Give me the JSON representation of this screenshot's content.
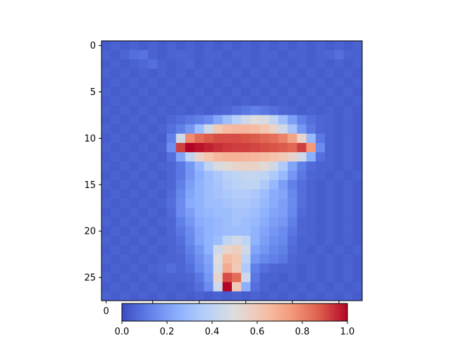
{
  "chart_data": {
    "type": "heatmap",
    "colormap": "coolwarm",
    "grid": false,
    "rows": 28,
    "cols": 28,
    "y_ticks": [
      "0",
      "5",
      "10",
      "15",
      "20",
      "25"
    ],
    "x_ticks_visible": [
      "0"
    ],
    "colorbar": {
      "orientation": "horizontal",
      "placement": "bottom",
      "range": [
        0.0,
        1.0
      ],
      "tick_labels": [
        "0.0",
        "0.2",
        "0.4",
        "0.6",
        "0.8",
        "1.0"
      ]
    },
    "values": [
      [
        0.04,
        0.05,
        0.04,
        0.05,
        0.04,
        0.05,
        0.04,
        0.05,
        0.04,
        0.05,
        0.04,
        0.05,
        0.04,
        0.05,
        0.04,
        0.05,
        0.04,
        0.05,
        0.04,
        0.05,
        0.04,
        0.05,
        0.04,
        0.05,
        0.04,
        0.05,
        0.04,
        0.05
      ],
      [
        0.05,
        0.04,
        0.06,
        0.08,
        0.09,
        0.05,
        0.04,
        0.05,
        0.06,
        0.05,
        0.04,
        0.05,
        0.05,
        0.04,
        0.05,
        0.05,
        0.04,
        0.05,
        0.05,
        0.04,
        0.05,
        0.05,
        0.04,
        0.05,
        0.06,
        0.08,
        0.05,
        0.05
      ],
      [
        0.04,
        0.05,
        0.04,
        0.05,
        0.06,
        0.08,
        0.05,
        0.04,
        0.05,
        0.06,
        0.04,
        0.05,
        0.04,
        0.05,
        0.04,
        0.05,
        0.04,
        0.05,
        0.04,
        0.05,
        0.04,
        0.05,
        0.04,
        0.05,
        0.04,
        0.05,
        0.04,
        0.05
      ],
      [
        0.05,
        0.04,
        0.05,
        0.04,
        0.05,
        0.04,
        0.05,
        0.04,
        0.05,
        0.04,
        0.05,
        0.04,
        0.05,
        0.04,
        0.05,
        0.04,
        0.05,
        0.04,
        0.05,
        0.04,
        0.05,
        0.04,
        0.05,
        0.04,
        0.05,
        0.04,
        0.05,
        0.04
      ],
      [
        0.04,
        0.05,
        0.04,
        0.05,
        0.04,
        0.05,
        0.04,
        0.05,
        0.04,
        0.05,
        0.04,
        0.05,
        0.04,
        0.05,
        0.04,
        0.05,
        0.04,
        0.05,
        0.04,
        0.05,
        0.04,
        0.05,
        0.04,
        0.05,
        0.04,
        0.05,
        0.04,
        0.05
      ],
      [
        0.05,
        0.04,
        0.05,
        0.04,
        0.05,
        0.04,
        0.05,
        0.04,
        0.05,
        0.04,
        0.05,
        0.04,
        0.05,
        0.04,
        0.05,
        0.04,
        0.05,
        0.04,
        0.05,
        0.04,
        0.05,
        0.04,
        0.05,
        0.04,
        0.05,
        0.04,
        0.05,
        0.04
      ],
      [
        0.04,
        0.05,
        0.04,
        0.05,
        0.04,
        0.05,
        0.04,
        0.05,
        0.04,
        0.05,
        0.04,
        0.05,
        0.04,
        0.05,
        0.04,
        0.05,
        0.04,
        0.05,
        0.04,
        0.05,
        0.04,
        0.05,
        0.04,
        0.05,
        0.04,
        0.05,
        0.04,
        0.05
      ],
      [
        0.05,
        0.04,
        0.05,
        0.04,
        0.05,
        0.04,
        0.05,
        0.04,
        0.05,
        0.04,
        0.05,
        0.04,
        0.05,
        0.06,
        0.08,
        0.1,
        0.12,
        0.1,
        0.08,
        0.06,
        0.05,
        0.04,
        0.05,
        0.04,
        0.05,
        0.04,
        0.05,
        0.04
      ],
      [
        0.04,
        0.05,
        0.04,
        0.05,
        0.04,
        0.05,
        0.04,
        0.06,
        0.08,
        0.1,
        0.12,
        0.15,
        0.22,
        0.3,
        0.38,
        0.45,
        0.5,
        0.48,
        0.4,
        0.3,
        0.2,
        0.12,
        0.08,
        0.06,
        0.05,
        0.04,
        0.05,
        0.04
      ],
      [
        0.05,
        0.04,
        0.05,
        0.04,
        0.05,
        0.04,
        0.05,
        0.08,
        0.12,
        0.18,
        0.3,
        0.45,
        0.6,
        0.65,
        0.66,
        0.66,
        0.65,
        0.62,
        0.55,
        0.45,
        0.32,
        0.18,
        0.1,
        0.06,
        0.05,
        0.04,
        0.05,
        0.04
      ],
      [
        0.04,
        0.05,
        0.04,
        0.05,
        0.04,
        0.05,
        0.04,
        0.12,
        0.45,
        0.78,
        0.85,
        0.88,
        0.9,
        0.9,
        0.9,
        0.89,
        0.88,
        0.86,
        0.84,
        0.8,
        0.72,
        0.55,
        0.28,
        0.1,
        0.05,
        0.04,
        0.05,
        0.04
      ],
      [
        0.05,
        0.04,
        0.05,
        0.04,
        0.05,
        0.04,
        0.05,
        0.16,
        0.92,
        1.0,
        0.98,
        0.96,
        0.94,
        0.93,
        0.92,
        0.92,
        0.91,
        0.9,
        0.89,
        0.88,
        0.86,
        0.92,
        0.75,
        0.15,
        0.05,
        0.04,
        0.05,
        0.04
      ],
      [
        0.04,
        0.05,
        0.04,
        0.05,
        0.04,
        0.05,
        0.04,
        0.08,
        0.22,
        0.4,
        0.55,
        0.62,
        0.66,
        0.68,
        0.68,
        0.67,
        0.66,
        0.65,
        0.63,
        0.6,
        0.55,
        0.45,
        0.25,
        0.08,
        0.05,
        0.04,
        0.05,
        0.04
      ],
      [
        0.05,
        0.04,
        0.05,
        0.04,
        0.05,
        0.04,
        0.05,
        0.06,
        0.1,
        0.18,
        0.28,
        0.4,
        0.48,
        0.52,
        0.55,
        0.56,
        0.55,
        0.52,
        0.45,
        0.35,
        0.22,
        0.12,
        0.07,
        0.05,
        0.05,
        0.04,
        0.05,
        0.04
      ],
      [
        0.04,
        0.05,
        0.04,
        0.05,
        0.04,
        0.05,
        0.04,
        0.06,
        0.1,
        0.18,
        0.25,
        0.3,
        0.34,
        0.38,
        0.4,
        0.42,
        0.42,
        0.4,
        0.35,
        0.28,
        0.18,
        0.1,
        0.06,
        0.05,
        0.04,
        0.05,
        0.04,
        0.05
      ],
      [
        0.05,
        0.04,
        0.05,
        0.04,
        0.05,
        0.04,
        0.05,
        0.06,
        0.12,
        0.2,
        0.26,
        0.3,
        0.33,
        0.36,
        0.38,
        0.4,
        0.4,
        0.35,
        0.28,
        0.2,
        0.12,
        0.08,
        0.05,
        0.04,
        0.05,
        0.04,
        0.05,
        0.04
      ],
      [
        0.04,
        0.05,
        0.04,
        0.05,
        0.04,
        0.05,
        0.04,
        0.07,
        0.14,
        0.22,
        0.26,
        0.3,
        0.32,
        0.34,
        0.36,
        0.36,
        0.34,
        0.3,
        0.24,
        0.22,
        0.14,
        0.08,
        0.05,
        0.04,
        0.05,
        0.04,
        0.05,
        0.04
      ],
      [
        0.05,
        0.04,
        0.05,
        0.04,
        0.05,
        0.04,
        0.05,
        0.08,
        0.15,
        0.24,
        0.26,
        0.3,
        0.3,
        0.32,
        0.34,
        0.34,
        0.32,
        0.28,
        0.24,
        0.2,
        0.15,
        0.08,
        0.05,
        0.04,
        0.05,
        0.04,
        0.05,
        0.04
      ],
      [
        0.04,
        0.05,
        0.04,
        0.05,
        0.04,
        0.05,
        0.04,
        0.07,
        0.15,
        0.2,
        0.26,
        0.28,
        0.3,
        0.3,
        0.32,
        0.32,
        0.3,
        0.26,
        0.22,
        0.2,
        0.14,
        0.07,
        0.05,
        0.04,
        0.05,
        0.04,
        0.05,
        0.04
      ],
      [
        0.05,
        0.04,
        0.05,
        0.04,
        0.05,
        0.04,
        0.05,
        0.06,
        0.12,
        0.18,
        0.24,
        0.26,
        0.28,
        0.3,
        0.32,
        0.3,
        0.28,
        0.24,
        0.2,
        0.18,
        0.12,
        0.06,
        0.05,
        0.04,
        0.05,
        0.04,
        0.05,
        0.04
      ],
      [
        0.04,
        0.05,
        0.04,
        0.05,
        0.04,
        0.05,
        0.04,
        0.06,
        0.1,
        0.15,
        0.22,
        0.26,
        0.28,
        0.3,
        0.3,
        0.3,
        0.26,
        0.22,
        0.18,
        0.15,
        0.1,
        0.06,
        0.05,
        0.04,
        0.05,
        0.04,
        0.05,
        0.04
      ],
      [
        0.05,
        0.04,
        0.05,
        0.04,
        0.05,
        0.04,
        0.05,
        0.05,
        0.08,
        0.14,
        0.22,
        0.26,
        0.3,
        0.4,
        0.45,
        0.4,
        0.26,
        0.2,
        0.16,
        0.14,
        0.08,
        0.05,
        0.05,
        0.04,
        0.05,
        0.04,
        0.05,
        0.04
      ],
      [
        0.04,
        0.05,
        0.04,
        0.05,
        0.04,
        0.05,
        0.04,
        0.05,
        0.07,
        0.12,
        0.18,
        0.26,
        0.45,
        0.55,
        0.58,
        0.45,
        0.22,
        0.18,
        0.14,
        0.12,
        0.07,
        0.05,
        0.04,
        0.05,
        0.04,
        0.05,
        0.04,
        0.05
      ],
      [
        0.05,
        0.04,
        0.05,
        0.04,
        0.05,
        0.04,
        0.05,
        0.05,
        0.06,
        0.1,
        0.16,
        0.22,
        0.5,
        0.65,
        0.62,
        0.4,
        0.18,
        0.14,
        0.12,
        0.1,
        0.06,
        0.05,
        0.05,
        0.04,
        0.05,
        0.04,
        0.05,
        0.04
      ],
      [
        0.04,
        0.05,
        0.04,
        0.05,
        0.04,
        0.05,
        0.06,
        0.08,
        0.06,
        0.08,
        0.14,
        0.2,
        0.48,
        0.7,
        0.6,
        0.35,
        0.12,
        0.08,
        0.06,
        0.05,
        0.05,
        0.04,
        0.05,
        0.04,
        0.05,
        0.04,
        0.05,
        0.04
      ],
      [
        0.05,
        0.04,
        0.05,
        0.04,
        0.05,
        0.04,
        0.05,
        0.05,
        0.05,
        0.06,
        0.1,
        0.18,
        0.55,
        0.9,
        0.85,
        0.45,
        0.1,
        0.05,
        0.05,
        0.04,
        0.05,
        0.04,
        0.05,
        0.04,
        0.05,
        0.04,
        0.05,
        0.04
      ],
      [
        0.04,
        0.05,
        0.04,
        0.05,
        0.04,
        0.05,
        0.04,
        0.05,
        0.04,
        0.05,
        0.08,
        0.15,
        0.45,
        1.0,
        0.6,
        0.25,
        0.08,
        0.05,
        0.04,
        0.05,
        0.04,
        0.05,
        0.04,
        0.05,
        0.04,
        0.05,
        0.04,
        0.05
      ],
      [
        0.05,
        0.04,
        0.05,
        0.04,
        0.05,
        0.04,
        0.05,
        0.04,
        0.05,
        0.04,
        0.05,
        0.04,
        0.05,
        0.04,
        0.05,
        0.04,
        0.05,
        0.04,
        0.05,
        0.04,
        0.05,
        0.04,
        0.05,
        0.04,
        0.05,
        0.04,
        0.05,
        0.04
      ]
    ]
  }
}
